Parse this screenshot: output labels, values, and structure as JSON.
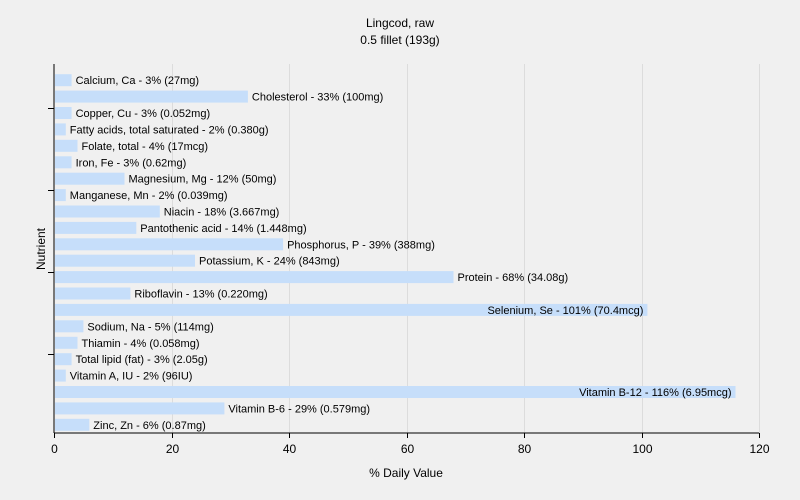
{
  "chart_data": {
    "type": "bar",
    "orientation": "horizontal",
    "title": "Lingcod, raw",
    "subtitle": "0.5 fillet (193g)",
    "xlabel": "% Daily Value",
    "ylabel": "Nutrient",
    "xlim": [
      0,
      120
    ],
    "xticks": [
      "0",
      "20",
      "40",
      "60",
      "80",
      "100",
      "120"
    ],
    "grid": true,
    "bar_color": "#c6defa",
    "categories": [
      "Calcium, Ca",
      "Cholesterol",
      "Copper, Cu",
      "Fatty acids, total saturated",
      "Folate, total",
      "Iron, Fe",
      "Magnesium, Mg",
      "Manganese, Mn",
      "Niacin",
      "Pantothenic acid",
      "Phosphorus, P",
      "Potassium, K",
      "Protein",
      "Riboflavin",
      "Selenium, Se",
      "Sodium, Na",
      "Thiamin",
      "Total lipid (fat)",
      "Vitamin A, IU",
      "Vitamin B-12",
      "Vitamin B-6",
      "Zinc, Zn"
    ],
    "values": [
      3,
      33,
      3,
      2,
      4,
      3,
      12,
      2,
      18,
      14,
      39,
      24,
      68,
      13,
      101,
      5,
      4,
      3,
      2,
      116,
      29,
      6
    ],
    "labels": [
      "Calcium, Ca - 3% (27mg)",
      "Cholesterol - 33% (100mg)",
      "Copper, Cu - 3% (0.052mg)",
      "Fatty acids, total saturated - 2% (0.380g)",
      "Folate, total - 4% (17mcg)",
      "Iron, Fe - 3% (0.62mg)",
      "Magnesium, Mg - 12% (50mg)",
      "Manganese, Mn - 2% (0.039mg)",
      "Niacin - 18% (3.667mg)",
      "Pantothenic acid - 14% (1.448mg)",
      "Phosphorus, P - 39% (388mg)",
      "Potassium, K - 24% (843mg)",
      "Protein - 68% (34.08g)",
      "Riboflavin - 13% (0.220mg)",
      "Selenium, Se - 101% (70.4mcg)",
      "Sodium, Na - 5% (114mg)",
      "Thiamin - 4% (0.058mg)",
      "Total lipid (fat) - 3% (2.05g)",
      "Vitamin A, IU - 2% (96IU)",
      "Vitamin B-12 - 116% (6.95mcg)",
      "Vitamin B-6 - 29% (0.579mg)",
      "Zinc, Zn - 6% (0.87mg)"
    ]
  }
}
